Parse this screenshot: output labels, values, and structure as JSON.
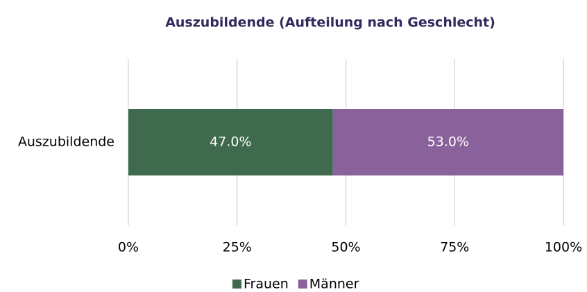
{
  "chart_data": {
    "type": "stacked_bar_horizontal",
    "title": "Auszubildende (Aufteilung nach Geschlecht)",
    "categories": [
      "Auszubildende"
    ],
    "series": [
      {
        "name": "Frauen",
        "color": "#3f6a4d",
        "values": [
          47.0
        ],
        "value_labels": [
          "47.0%"
        ]
      },
      {
        "name": "Männer",
        "color": "#8a629b",
        "values": [
          53.0
        ],
        "value_labels": [
          "53.0%"
        ]
      }
    ],
    "xlim": [
      0,
      100
    ],
    "xticks": [
      {
        "value": 0,
        "label": "0%"
      },
      {
        "value": 25,
        "label": "25%"
      },
      {
        "value": 50,
        "label": "50%"
      },
      {
        "value": 75,
        "label": "75%"
      },
      {
        "value": 100,
        "label": "100%"
      }
    ],
    "grid": true,
    "legend": "bottom"
  }
}
